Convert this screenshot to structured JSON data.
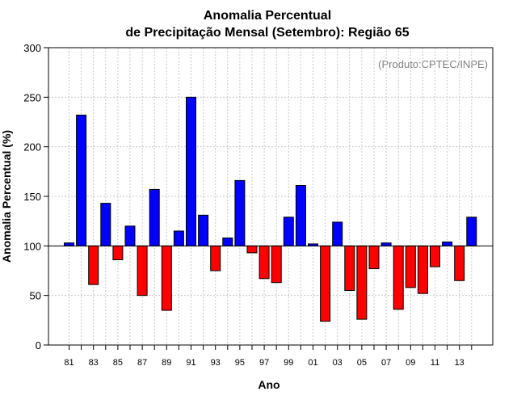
{
  "chart_data": {
    "type": "bar",
    "title": "Anomalia Percentual",
    "subtitle": "de Precipitação Mensal (Setembro): Região 65",
    "xlabel": "Ano",
    "ylabel": "Anomalia Percentual (%)",
    "credit": "(Produto:CPTEC/INPE)",
    "ylim": [
      0,
      300
    ],
    "yticks": [
      0,
      50,
      100,
      150,
      200,
      250,
      300
    ],
    "baseline": 100,
    "grid": true,
    "above_color": "#0000ff",
    "below_color": "#ff0000",
    "categories": [
      "81",
      "82",
      "83",
      "84",
      "85",
      "86",
      "87",
      "88",
      "89",
      "90",
      "91",
      "92",
      "93",
      "94",
      "95",
      "96",
      "97",
      "98",
      "99",
      "00",
      "01",
      "02",
      "03",
      "04",
      "05",
      "06",
      "07",
      "08",
      "09",
      "10",
      "11",
      "12",
      "13",
      "14"
    ],
    "tick_labels": [
      "81",
      "83",
      "85",
      "87",
      "89",
      "91",
      "93",
      "95",
      "97",
      "99",
      "01",
      "03",
      "05",
      "07",
      "09",
      "11",
      "13"
    ],
    "values": [
      103,
      232,
      61,
      143,
      86,
      120,
      50,
      157,
      35,
      115,
      250,
      131,
      75,
      108,
      166,
      93,
      67,
      63,
      129,
      161,
      102,
      24,
      124,
      55,
      26,
      77,
      103,
      36,
      58,
      52,
      79,
      104,
      65,
      129
    ]
  }
}
